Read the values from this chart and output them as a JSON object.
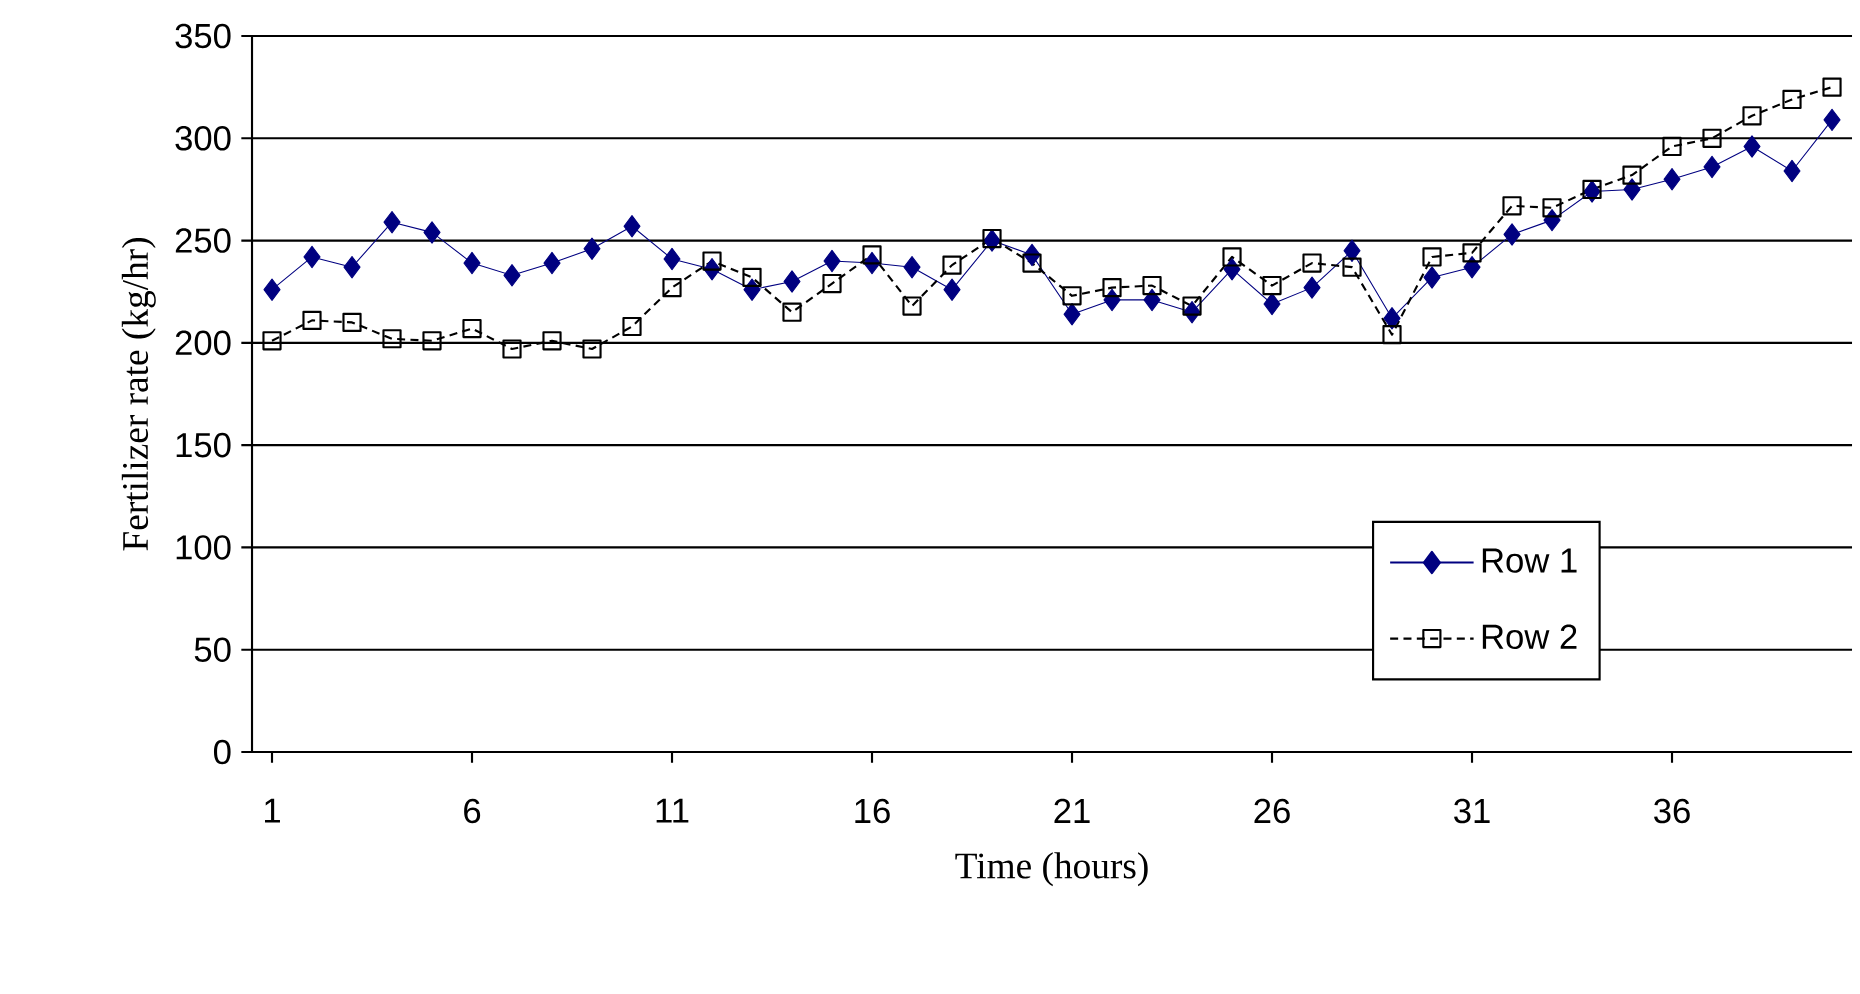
{
  "chart_data": {
    "type": "line",
    "xlabel": "Time (hours)",
    "ylabel": "Fertilizer rate (kg/hr)",
    "x": [
      1,
      2,
      3,
      4,
      5,
      6,
      7,
      8,
      9,
      10,
      11,
      12,
      13,
      14,
      15,
      16,
      17,
      18,
      19,
      20,
      21,
      22,
      23,
      24,
      25,
      26,
      27,
      28,
      29,
      30,
      31,
      32,
      33,
      34,
      35,
      36,
      37,
      38,
      39,
      40
    ],
    "series": [
      {
        "name": "Row  1",
        "color": "#000080",
        "marker": "diamond",
        "line_style": "solid",
        "values": [
          226,
          242,
          237,
          259,
          254,
          239,
          233,
          239,
          246,
          257,
          241,
          236,
          226,
          230,
          240,
          239,
          237,
          226,
          250,
          243,
          214,
          221,
          221,
          215,
          236,
          219,
          227,
          245,
          212,
          232,
          237,
          253,
          260,
          274,
          275,
          280,
          286,
          296,
          284,
          309
        ]
      },
      {
        "name": "Row  2",
        "color": "#000000",
        "marker": "square",
        "line_style": "dashed",
        "values": [
          201,
          211,
          210,
          202,
          201,
          207,
          197,
          201,
          197,
          208,
          227,
          240,
          232,
          215,
          229,
          243,
          218,
          238,
          251,
          239,
          223,
          227,
          228,
          218,
          242,
          228,
          239,
          237,
          204,
          242,
          244,
          267,
          266,
          275,
          282,
          296,
          300,
          311,
          319,
          325
        ]
      }
    ],
    "xlim": [
      0.5,
      40.5
    ],
    "xticks": [
      1,
      6,
      11,
      16,
      21,
      26,
      31,
      36
    ],
    "ylim": [
      0,
      350
    ],
    "yticks": [
      0,
      50,
      100,
      150,
      200,
      250,
      300,
      350
    ],
    "grid": "y",
    "legend": "right"
  }
}
